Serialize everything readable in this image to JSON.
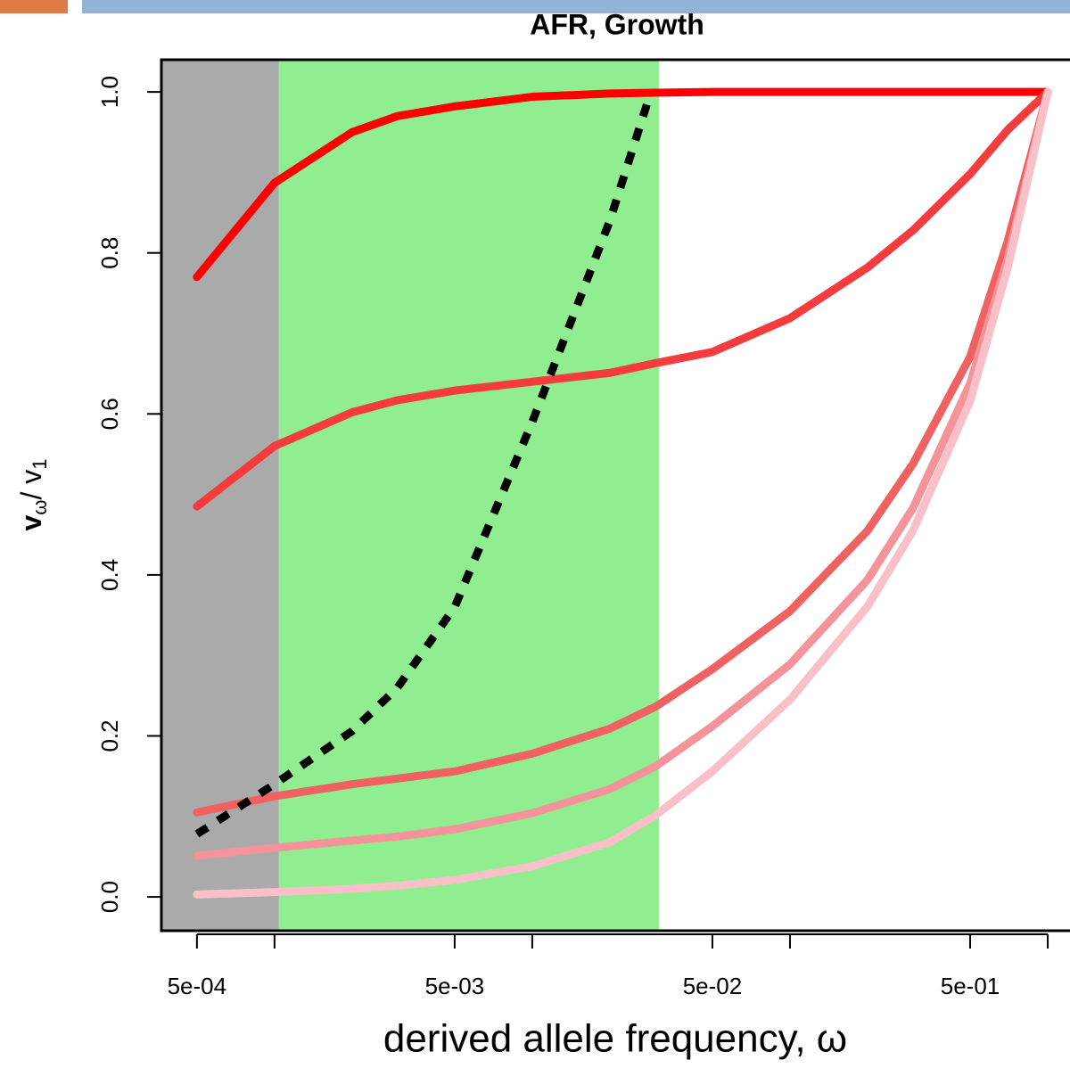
{
  "chart_data": {
    "type": "line",
    "title": "AFR, Growth",
    "xlabel": "derived allele frequency, ω",
    "ylabel": [
      "v",
      "ω",
      "/ v",
      "1"
    ],
    "xscale": "log",
    "xlim": [
      0.000364,
      1.22
    ],
    "ylim": [
      -0.042,
      1.04
    ],
    "xticks": [
      {
        "value": 0.0005,
        "label": "5e-04"
      },
      {
        "value": 0.001,
        "label": null
      },
      {
        "value": 0.005,
        "label": "5e-03"
      },
      {
        "value": 0.01,
        "label": null
      },
      {
        "value": 0.05,
        "label": "5e-02"
      },
      {
        "value": 0.1,
        "label": null
      },
      {
        "value": 0.5,
        "label": "5e-01"
      },
      {
        "value": 1,
        "label": null
      }
    ],
    "yticks": [
      {
        "value": 0,
        "label": "0.0"
      },
      0.2,
      0.4,
      0.6,
      0.8,
      {
        "value": 1,
        "label": "1.0"
      }
    ],
    "shaded_regions": [
      {
        "from": 0.000364,
        "to": 0.00104,
        "color": "#aaaaaa"
      },
      {
        "from": 0.00104,
        "to": 0.031,
        "color": "#90ee90"
      }
    ],
    "series": [
      {
        "color": "#ff0000",
        "dashed": false,
        "x": [
          0.0005,
          0.001,
          0.002,
          0.003,
          0.005,
          0.01,
          0.02,
          0.03,
          0.05,
          0.1,
          0.2,
          0.3,
          0.5,
          0.7,
          1
        ],
        "values": [
          0.77,
          0.887,
          0.95,
          0.97,
          0.982,
          0.994,
          0.998,
          0.999,
          1,
          1,
          1,
          1,
          1,
          1,
          1
        ]
      },
      {
        "color": "#f53b3b",
        "dashed": false,
        "x": [
          0.0005,
          0.001,
          0.002,
          0.003,
          0.005,
          0.01,
          0.02,
          0.03,
          0.05,
          0.1,
          0.2,
          0.3,
          0.5,
          0.7,
          1
        ],
        "values": [
          0.485,
          0.56,
          0.602,
          0.617,
          0.629,
          0.64,
          0.651,
          0.663,
          0.677,
          0.719,
          0.782,
          0.828,
          0.898,
          0.953,
          1
        ]
      },
      {
        "color": "#f06262",
        "dashed": false,
        "x": [
          0.0005,
          0.001,
          0.002,
          0.003,
          0.005,
          0.01,
          0.02,
          0.03,
          0.05,
          0.1,
          0.2,
          0.3,
          0.5,
          0.7,
          1
        ],
        "values": [
          0.105,
          0.125,
          0.14,
          0.147,
          0.156,
          0.178,
          0.209,
          0.236,
          0.283,
          0.355,
          0.455,
          0.538,
          0.671,
          0.815,
          1
        ]
      },
      {
        "color": "#f4949a",
        "dashed": false,
        "x": [
          0.0005,
          0.001,
          0.002,
          0.003,
          0.005,
          0.01,
          0.02,
          0.03,
          0.05,
          0.1,
          0.2,
          0.3,
          0.5,
          0.7,
          1
        ],
        "values": [
          0.051,
          0.061,
          0.07,
          0.075,
          0.084,
          0.104,
          0.134,
          0.162,
          0.212,
          0.289,
          0.394,
          0.483,
          0.638,
          0.793,
          1
        ]
      },
      {
        "color": "#f9c0c8",
        "dashed": false,
        "x": [
          0.0005,
          0.001,
          0.002,
          0.003,
          0.005,
          0.01,
          0.02,
          0.03,
          0.05,
          0.1,
          0.2,
          0.3,
          0.5,
          0.7,
          1
        ],
        "values": [
          0.003,
          0.006,
          0.01,
          0.014,
          0.021,
          0.038,
          0.068,
          0.101,
          0.156,
          0.245,
          0.361,
          0.455,
          0.616,
          0.782,
          1
        ]
      },
      {
        "color": "#000000",
        "dashed": true,
        "x": [
          0.0005,
          0.001,
          0.002,
          0.003,
          0.005,
          0.01,
          0.02,
          0.028
        ],
        "values": [
          0.078,
          0.14,
          0.206,
          0.26,
          0.36,
          0.59,
          0.84,
          0.987
        ]
      }
    ]
  }
}
